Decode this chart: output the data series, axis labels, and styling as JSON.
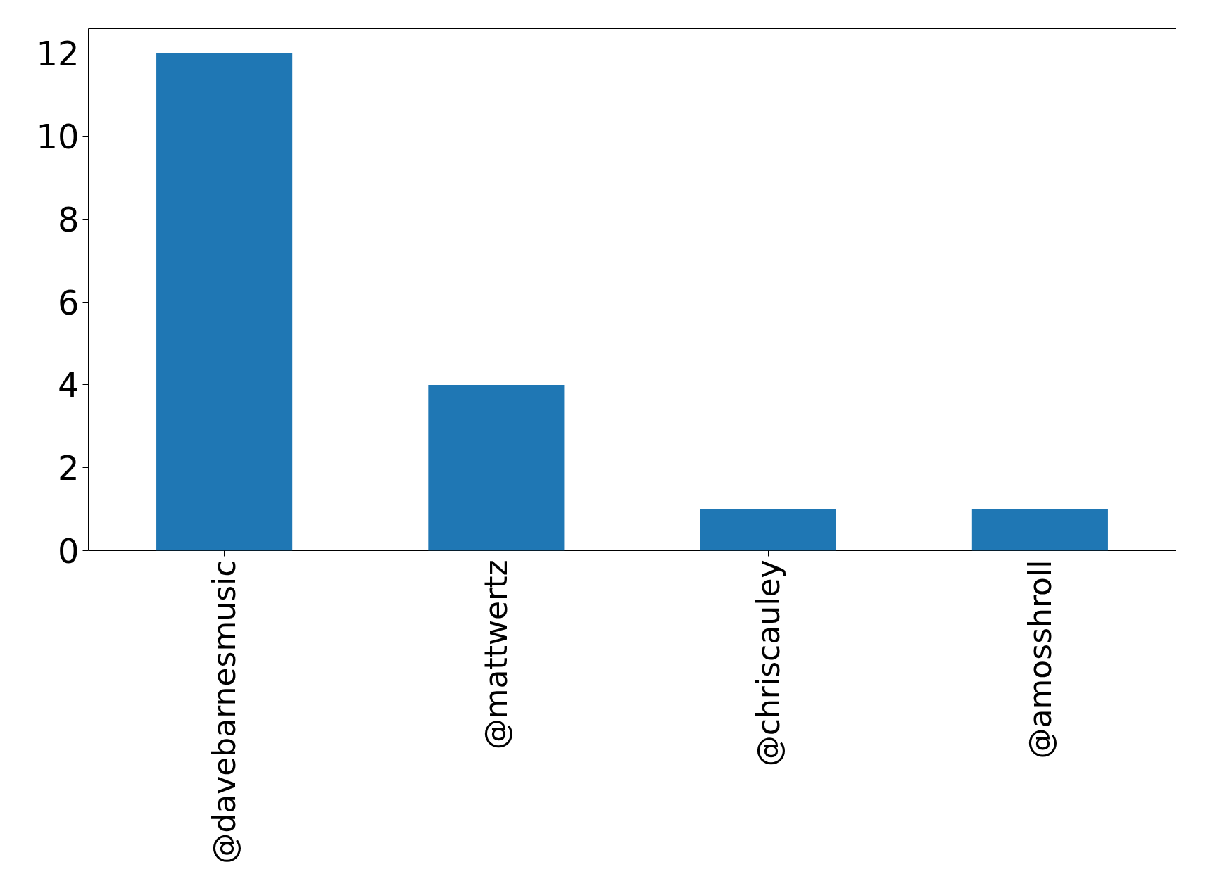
{
  "chart_data": {
    "type": "bar",
    "categories": [
      "@davebarnesmusic",
      "@mattwertz",
      "@chriscauley",
      "@amosshroll"
    ],
    "values": [
      12,
      4,
      1,
      1
    ],
    "color": "#1f77b4",
    "ylim": [
      0,
      12.6
    ],
    "yticks": [
      0,
      2,
      4,
      6,
      8,
      10,
      12
    ],
    "grid": false
  }
}
